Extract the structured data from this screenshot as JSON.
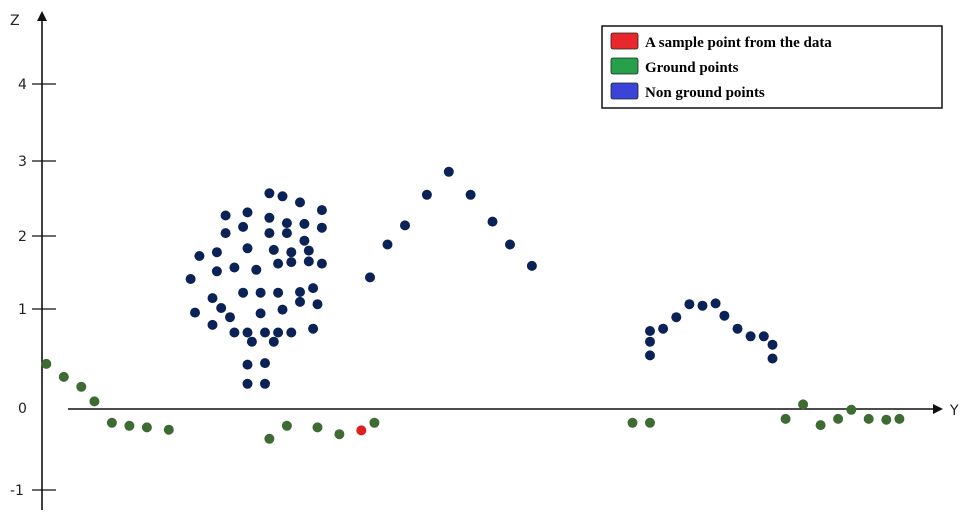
{
  "chart_data": {
    "type": "scatter",
    "title": "",
    "xlabel": "Y",
    "ylabel": "Z",
    "y_ticks": [
      "4",
      "3",
      "2",
      "1",
      "0",
      "-1"
    ],
    "legend": {
      "placement": "top-right",
      "entries": [
        {
          "label": "A sample point from the data",
          "color": "#e8282c"
        },
        {
          "label": "Ground points",
          "color": "#27a04a"
        },
        {
          "label": "Non ground points",
          "color": "#3a44d8"
        }
      ]
    },
    "colors": {
      "non_ground_points": "#0a2255",
      "ground_points": "#3e6b33",
      "sample_point": "#e01e1e"
    },
    "series": [
      {
        "key": "non_ground",
        "points": [
          [
            2.6,
            0.33
          ],
          [
            2.8,
            0.33
          ],
          [
            2.6,
            0.58
          ],
          [
            2.8,
            0.6
          ],
          [
            2.65,
            0.88
          ],
          [
            2.9,
            0.88
          ],
          [
            2.45,
            1.0
          ],
          [
            2.95,
            1.0
          ],
          [
            2.2,
            1.1
          ],
          [
            2.4,
            1.2
          ],
          [
            2.6,
            1.0
          ],
          [
            2.8,
            1.0
          ],
          [
            3.1,
            1.0
          ],
          [
            3.35,
            1.05
          ],
          [
            2.0,
            1.26
          ],
          [
            2.3,
            1.32
          ],
          [
            2.75,
            1.25
          ],
          [
            3.0,
            1.3
          ],
          [
            3.2,
            1.4
          ],
          [
            3.4,
            1.37
          ],
          [
            2.2,
            1.45
          ],
          [
            2.55,
            1.52
          ],
          [
            2.75,
            1.52
          ],
          [
            2.95,
            1.52
          ],
          [
            3.2,
            1.53
          ],
          [
            3.35,
            1.58
          ],
          [
            1.95,
            1.7
          ],
          [
            2.25,
            1.8
          ],
          [
            2.45,
            1.85
          ],
          [
            2.7,
            1.82
          ],
          [
            2.95,
            1.9
          ],
          [
            3.1,
            1.92
          ],
          [
            3.3,
            1.93
          ],
          [
            3.45,
            1.9
          ],
          [
            2.05,
            2.0
          ],
          [
            2.25,
            2.05
          ],
          [
            2.6,
            2.1
          ],
          [
            2.9,
            2.08
          ],
          [
            3.1,
            2.05
          ],
          [
            3.3,
            2.07
          ],
          [
            2.35,
            2.3
          ],
          [
            2.55,
            2.38
          ],
          [
            2.85,
            2.3
          ],
          [
            3.05,
            2.3
          ],
          [
            3.25,
            2.2
          ],
          [
            2.35,
            2.53
          ],
          [
            2.6,
            2.57
          ],
          [
            2.85,
            2.5
          ],
          [
            3.05,
            2.43
          ],
          [
            3.25,
            2.42
          ],
          [
            3.45,
            2.37
          ],
          [
            2.85,
            2.82
          ],
          [
            3.0,
            2.78
          ],
          [
            3.2,
            2.7
          ],
          [
            3.45,
            2.6
          ],
          [
            4.0,
            1.72
          ],
          [
            4.2,
            2.15
          ],
          [
            4.4,
            2.4
          ],
          [
            4.65,
            2.8
          ],
          [
            4.9,
            3.1
          ],
          [
            5.15,
            2.8
          ],
          [
            5.4,
            2.45
          ],
          [
            5.6,
            2.15
          ],
          [
            5.85,
            1.87
          ],
          [
            7.2,
            0.7
          ],
          [
            7.2,
            0.88
          ],
          [
            7.2,
            1.02
          ],
          [
            7.35,
            1.05
          ],
          [
            7.5,
            1.2
          ],
          [
            7.65,
            1.37
          ],
          [
            7.8,
            1.35
          ],
          [
            7.95,
            1.38
          ],
          [
            8.05,
            1.22
          ],
          [
            8.2,
            1.05
          ],
          [
            8.35,
            0.95
          ],
          [
            8.5,
            0.95
          ],
          [
            8.6,
            0.84
          ],
          [
            8.6,
            0.66
          ]
        ]
      },
      {
        "key": "ground",
        "points": [
          [
            0.3,
            0.59
          ],
          [
            0.5,
            0.42
          ],
          [
            0.7,
            0.29
          ],
          [
            0.85,
            0.1
          ],
          [
            1.05,
            -0.18
          ],
          [
            1.25,
            -0.22
          ],
          [
            1.45,
            -0.24
          ],
          [
            1.7,
            -0.27
          ],
          [
            2.85,
            -0.39
          ],
          [
            3.05,
            -0.22
          ],
          [
            3.4,
            -0.24
          ],
          [
            4.05,
            -0.18
          ],
          [
            3.65,
            -0.33
          ],
          [
            7.0,
            -0.18
          ],
          [
            7.2,
            -0.18
          ],
          [
            8.75,
            -0.13
          ],
          [
            8.95,
            0.06
          ],
          [
            9.15,
            -0.21
          ],
          [
            9.35,
            -0.13
          ],
          [
            9.5,
            -0.01
          ],
          [
            9.7,
            -0.13
          ],
          [
            9.9,
            -0.14
          ],
          [
            10.05,
            -0.13
          ]
        ]
      },
      {
        "key": "sample",
        "points": [
          [
            3.9,
            -0.28
          ]
        ]
      }
    ]
  }
}
